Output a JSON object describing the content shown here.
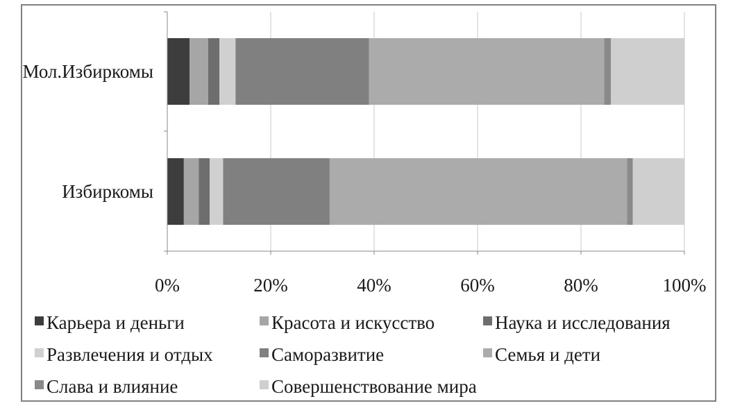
{
  "chart_data": {
    "type": "bar",
    "orientation": "horizontal",
    "stacked": "percent",
    "categories": [
      "Мол.Избиркомы",
      "Избиркомы"
    ],
    "xlim": [
      0,
      100
    ],
    "x_ticks": [
      "0%",
      "20%",
      "40%",
      "60%",
      "80%",
      "100%"
    ],
    "grid": true,
    "legend_position": "bottom",
    "series": [
      {
        "name": "Карьера и деньги",
        "color": "#3d3d3d",
        "values": [
          4.3,
          3.2
        ]
      },
      {
        "name": "Красота и искусство",
        "color": "#a6a6a6",
        "values": [
          3.6,
          2.9
        ]
      },
      {
        "name": "Наука и исследования",
        "color": "#6e6e6e",
        "values": [
          2.2,
          2.1
        ]
      },
      {
        "name": "Развлечения и отдых",
        "color": "#d0d0d0",
        "values": [
          3.1,
          2.6
        ]
      },
      {
        "name": "Саморазвитие",
        "color": "#808080",
        "values": [
          25.8,
          20.6
        ]
      },
      {
        "name": "Семья и дети",
        "color": "#ababab",
        "values": [
          45.5,
          57.5
        ]
      },
      {
        "name": "Слава и влияние",
        "color": "#8a8a8a",
        "values": [
          1.3,
          1.1
        ]
      },
      {
        "name": "Совершенствование мира",
        "color": "#cfcfcf",
        "values": [
          14.2,
          10.0
        ]
      }
    ]
  }
}
